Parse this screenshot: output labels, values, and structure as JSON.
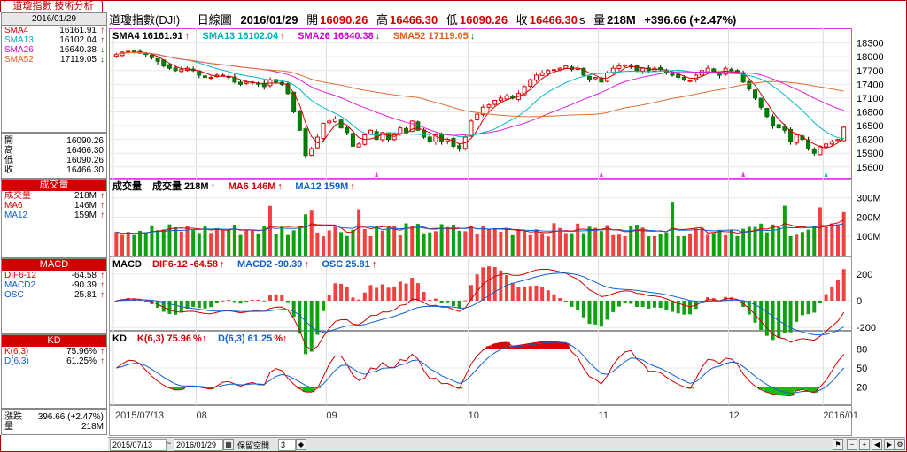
{
  "window": {
    "tab_label": "道瓊指數 技術分析"
  },
  "left": {
    "date": "2016/01/29",
    "ma_lines": [
      {
        "label": "SMA4",
        "value": "16161.91",
        "dir": "up",
        "color": "#d00000"
      },
      {
        "label": "SMA13",
        "value": "16102.04",
        "dir": "up",
        "color": "#00b0c0"
      },
      {
        "label": "SMA26",
        "value": "16640.38",
        "dir": "down",
        "color": "#d000d0"
      },
      {
        "label": "SMA52",
        "value": "17119.05",
        "dir": "down",
        "color": "#e06020"
      }
    ],
    "ohlc": [
      {
        "label": "開",
        "value": "16090.26"
      },
      {
        "label": "高",
        "value": "16466.30"
      },
      {
        "label": "低",
        "value": "16090.26"
      },
      {
        "label": "收",
        "value": "16466.30"
      }
    ],
    "volume": {
      "header": "成交量",
      "rows": [
        {
          "label": "成交量",
          "value": "218M",
          "dir": "up",
          "color": "#d00000"
        },
        {
          "label": "MA6",
          "value": "146M",
          "dir": "up",
          "color": "#d00000"
        },
        {
          "label": "MA12",
          "value": "159M",
          "dir": "up",
          "color": "#1060d0"
        }
      ]
    },
    "macd": {
      "header": "MACD",
      "rows": [
        {
          "label": "DIF6-12",
          "value": "-64.58",
          "dir": "up",
          "color": "#d00000"
        },
        {
          "label": "MACD2",
          "value": "-90.39",
          "dir": "up",
          "color": "#1060d0"
        },
        {
          "label": "OSC",
          "value": "25.81",
          "dir": "up",
          "color": "#1060d0"
        }
      ]
    },
    "kd": {
      "header": "KD",
      "rows": [
        {
          "label": "K(6,3)",
          "value": "75.96%",
          "dir": "up",
          "color": "#d00000"
        },
        {
          "label": "D(6,3)",
          "value": "61.25%",
          "dir": "up",
          "color": "#1060d0"
        }
      ]
    },
    "bottom": [
      {
        "label": "漲跌",
        "value": "396.66 (+2.47%)"
      },
      {
        "label": "量",
        "value": "218M"
      }
    ]
  },
  "info": {
    "name": "道瓊指數(DJI)",
    "period": "日線圖",
    "date": "2016/01/29",
    "open_label": "開",
    "open": "16090.26",
    "high_label": "高",
    "high": "16466.30",
    "low_label": "低",
    "low": "16090.26",
    "close_label": "收",
    "close": "16466.30",
    "suffix": "s",
    "vol_label": "量",
    "volume": "218M",
    "change": "+396.66 (+2.47%)"
  },
  "panels": {
    "price": {
      "legend": [
        {
          "text": "SMA4 16161.91",
          "arrow": "↑",
          "color": "#000000"
        },
        {
          "text": "SMA13 16102.04",
          "arrow": "↑",
          "color": "#00b0c0"
        },
        {
          "text": "SMA26 16640.38",
          "arrow": "↓",
          "color": "#d000d0"
        },
        {
          "text": "SMA52 17119.05",
          "arrow": "↓",
          "color": "#e06020"
        }
      ],
      "ticks": [
        "18300",
        "18000",
        "17700",
        "17400",
        "17100",
        "16800",
        "16500",
        "16200",
        "15900",
        "15600"
      ]
    },
    "volume": {
      "legend": [
        {
          "text": "成交量",
          "arrow": "",
          "color": "#000000"
        },
        {
          "text": "成交量 218M",
          "arrow": "↑",
          "color": "#000000"
        },
        {
          "text": "MA6 146M",
          "arrow": "↑",
          "color": "#d00000"
        },
        {
          "text": "MA12 159M",
          "arrow": "↑",
          "color": "#1060d0"
        }
      ],
      "ticks": [
        "300M",
        "200M",
        "100M"
      ]
    },
    "macd": {
      "legend": [
        {
          "text": "MACD",
          "arrow": "",
          "color": "#000000"
        },
        {
          "text": "DIF6-12 -64.58",
          "arrow": "↑",
          "color": "#d00000"
        },
        {
          "text": "MACD2 -90.39",
          "arrow": "↑",
          "color": "#1060d0"
        },
        {
          "text": "OSC 25.81",
          "arrow": "↑",
          "color": "#1060d0"
        }
      ],
      "ticks": [
        "200",
        "0",
        "-200"
      ]
    },
    "kd": {
      "legend": [
        {
          "text": "KD",
          "arrow": "",
          "color": "#000000"
        },
        {
          "text": "K(6,3) 75.96",
          "arrow": "%↑",
          "color": "#d00000"
        },
        {
          "text": "D(6,3) 61.25",
          "arrow": "%↑",
          "color": "#1060d0"
        }
      ],
      "ticks": [
        "80",
        "50",
        "20"
      ]
    }
  },
  "x_labels": [
    "2015/07/13",
    "08",
    "09",
    "10",
    "11",
    "12",
    "2016/01"
  ],
  "toolbar": {
    "start_date": "2015/07/13",
    "separator": "~",
    "end_date": "2016/01/29",
    "label": "保留空間",
    "space": "3"
  },
  "chart_data": {
    "type": "candlestick",
    "price_axis": [
      15600,
      18300
    ],
    "candles": {
      "start": "2015/07/13",
      "end": "2016/01/29",
      "last": {
        "open": 16090.26,
        "high": 16466.3,
        "low": 16090.26,
        "close": 16466.3
      }
    },
    "sma": {
      "SMA4": 16161.91,
      "SMA13": 16102.04,
      "SMA26": 16640.38,
      "SMA52": 17119.05
    },
    "volume_last": "218M",
    "macd_last": {
      "DIF6-12": -64.58,
      "MACD2": -90.39,
      "OSC": 25.81
    },
    "kd_last": {
      "K": 75.96,
      "D": 61.25
    },
    "closes": [
      18050,
      18100,
      18120,
      18100,
      18080,
      18050,
      17980,
      17900,
      17800,
      17750,
      17700,
      17720,
      17750,
      17700,
      17600,
      17550,
      17550,
      17600,
      17600,
      17550,
      17450,
      17400,
      17450,
      17450,
      17400,
      17350,
      17500,
      17450,
      17400,
      17200,
      16800,
      16400,
      15850,
      16000,
      16250,
      16550,
      16600,
      16650,
      16450,
      16350,
      16050,
      16100,
      16300,
      16400,
      16200,
      16350,
      16200,
      16300,
      16450,
      16350,
      16600,
      16400,
      16250,
      16150,
      16300,
      16150,
      16200,
      16050,
      16000,
      16250,
      16600,
      16750,
      16900,
      16950,
      17050,
      17100,
      17150,
      17100,
      17200,
      17350,
      17500,
      17600,
      17650,
      17700,
      17720,
      17750,
      17800,
      17720,
      17750,
      17600,
      17500,
      17550,
      17450,
      17650,
      17750,
      17800,
      17820,
      17780,
      17700,
      17750,
      17700,
      17750,
      17720,
      17650,
      17600,
      17550,
      17500,
      17480,
      17600,
      17700,
      17750,
      17650,
      17600,
      17750,
      17700,
      17650,
      17450,
      17300,
      17100,
      16900,
      16700,
      16500,
      16450,
      16400,
      16150,
      16300,
      16200,
      16000,
      15900,
      16050,
      16100,
      16150,
      16200,
      16466
    ]
  }
}
